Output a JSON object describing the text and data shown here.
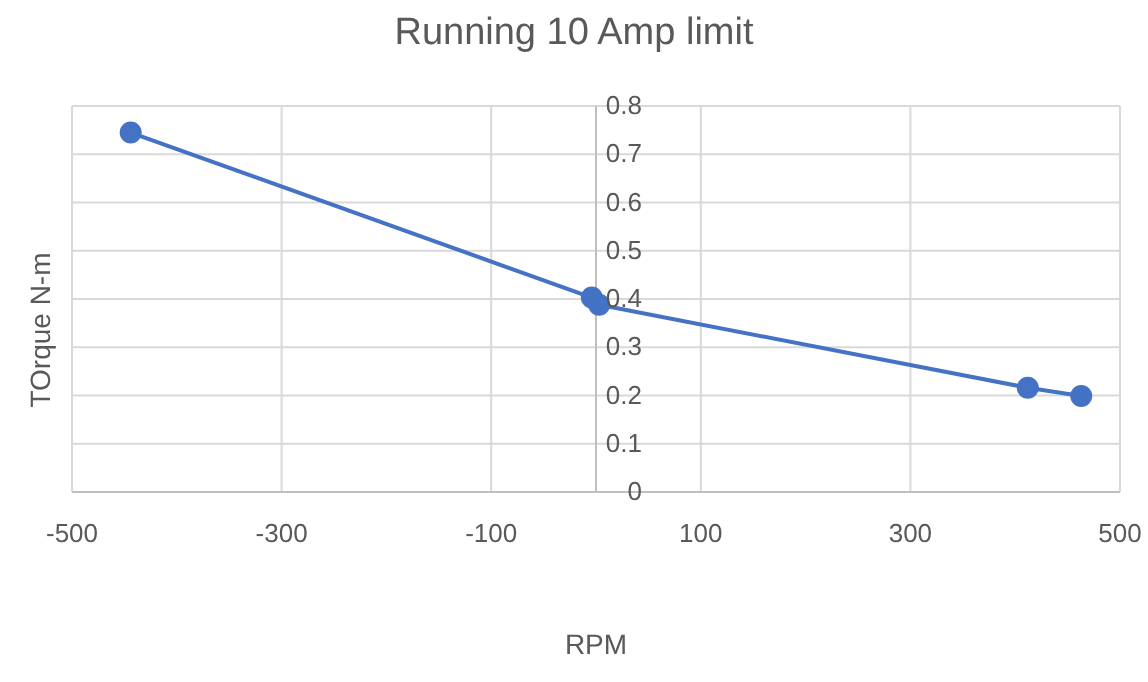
{
  "chart_data": {
    "type": "line",
    "title": "Running 10 Amp limit",
    "xlabel": "RPM",
    "ylabel": "TOrque N-m",
    "x": [
      -444,
      -4,
      3,
      412,
      463
    ],
    "series": [
      {
        "color": "#4472c4",
        "values": [
          0.745,
          0.403,
          0.388,
          0.216,
          0.199
        ]
      }
    ],
    "xlim": [
      -500,
      500
    ],
    "xticks": [
      -500,
      -300,
      -100,
      100,
      300,
      500
    ],
    "ylim": [
      0,
      0.8
    ],
    "yticks": [
      0,
      0.1,
      0.2,
      0.3,
      0.4,
      0.5,
      0.6,
      0.7,
      0.8
    ],
    "grid": true,
    "marker": "circle",
    "line_style": "solid"
  }
}
